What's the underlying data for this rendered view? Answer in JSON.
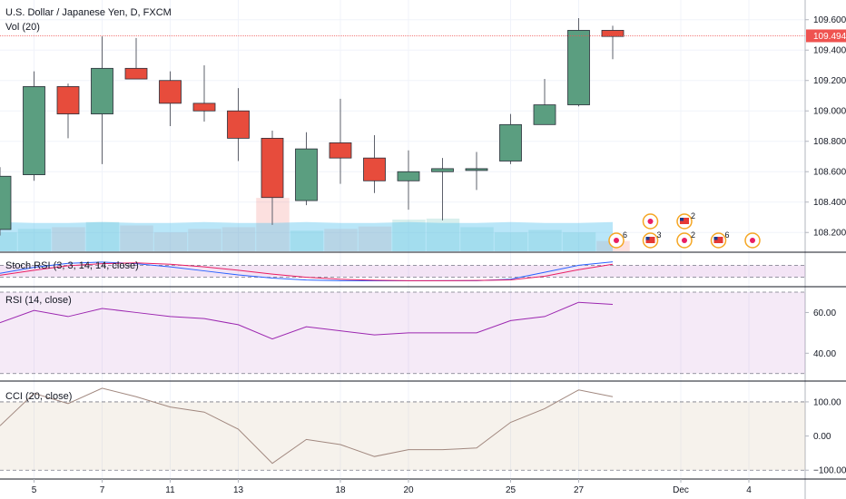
{
  "chart_data": [
    {
      "type": "candlestick",
      "title": "U.S. Dollar / Japanese Yen, D, FXCM",
      "volume_label": "Vol (20)",
      "last_price_label": "109.494",
      "last_price": 109.494,
      "y_ticks": [
        "109.600",
        "109.400",
        "109.200",
        "109.000",
        "108.800",
        "108.600",
        "108.400",
        "108.200"
      ],
      "ylim": [
        108.1,
        109.67
      ],
      "x_tick_labels": [
        {
          "label": "5",
          "index": 1
        },
        {
          "label": "7",
          "index": 3
        },
        {
          "label": "11",
          "index": 5
        },
        {
          "label": "13",
          "index": 7
        },
        {
          "label": "18",
          "index": 10
        },
        {
          "label": "20",
          "index": 12
        },
        {
          "label": "25",
          "index": 15
        },
        {
          "label": "27",
          "index": 17
        },
        {
          "label": "Dec",
          "index": 20
        },
        {
          "label": "4",
          "index": 22
        }
      ],
      "candles": [
        {
          "o": 108.22,
          "h": 108.63,
          "l": 108.18,
          "c": 108.57
        },
        {
          "o": 108.58,
          "h": 109.26,
          "l": 108.54,
          "c": 109.16
        },
        {
          "o": 109.16,
          "h": 109.18,
          "l": 108.82,
          "c": 108.98
        },
        {
          "o": 108.98,
          "h": 109.49,
          "l": 108.65,
          "c": 109.28
        },
        {
          "o": 109.28,
          "h": 109.48,
          "l": 109.21,
          "c": 109.21
        },
        {
          "o": 109.2,
          "h": 109.26,
          "l": 108.9,
          "c": 109.05
        },
        {
          "o": 109.05,
          "h": 109.3,
          "l": 108.93,
          "c": 109.0
        },
        {
          "o": 109.0,
          "h": 109.15,
          "l": 108.67,
          "c": 108.82
        },
        {
          "o": 108.82,
          "h": 108.87,
          "l": 108.25,
          "c": 108.43
        },
        {
          "o": 108.41,
          "h": 108.86,
          "l": 108.38,
          "c": 108.75
        },
        {
          "o": 108.79,
          "h": 109.08,
          "l": 108.52,
          "c": 108.69
        },
        {
          "o": 108.69,
          "h": 108.84,
          "l": 108.46,
          "c": 108.54
        },
        {
          "o": 108.54,
          "h": 108.74,
          "l": 108.35,
          "c": 108.6
        },
        {
          "o": 108.6,
          "h": 108.69,
          "l": 108.28,
          "c": 108.62
        },
        {
          "o": 108.61,
          "h": 108.73,
          "l": 108.48,
          "c": 108.62
        },
        {
          "o": 108.67,
          "h": 108.98,
          "l": 108.65,
          "c": 108.91
        },
        {
          "o": 108.91,
          "h": 109.21,
          "l": 108.91,
          "c": 109.04
        },
        {
          "o": 109.04,
          "h": 109.61,
          "l": 109.03,
          "c": 109.53
        },
        {
          "o": 109.53,
          "h": 109.56,
          "l": 109.34,
          "c": 109.49
        }
      ],
      "volume": [
        0.55,
        0.65,
        0.7,
        0.85,
        0.75,
        0.55,
        0.65,
        0.7,
        1.55,
        0.6,
        0.65,
        0.72,
        0.92,
        0.95,
        0.7,
        0.55,
        0.62,
        0.55,
        0.3
      ],
      "events": [
        {
          "index": 18,
          "row": 1,
          "kind": "dot",
          "count": "6"
        },
        {
          "index": 19,
          "row": 0,
          "kind": "dot",
          "count": ""
        },
        {
          "index": 19,
          "row": 1,
          "kind": "flag",
          "count": "3"
        },
        {
          "index": 20,
          "row": 0,
          "kind": "flag",
          "count": "2"
        },
        {
          "index": 20,
          "row": 1,
          "kind": "dot",
          "count": "2"
        },
        {
          "index": 21,
          "row": 1,
          "kind": "flag",
          "count": "6"
        },
        {
          "index": 22,
          "row": 1,
          "kind": "dot",
          "count": ""
        }
      ]
    },
    {
      "type": "line",
      "title": "Stoch RSI (3, 3, 14, 14, close)",
      "ylim": [
        0,
        100
      ],
      "bands": [
        20,
        80
      ],
      "series": [
        {
          "color": "#2962ff",
          "values": [
            40,
            70,
            90,
            96,
            88,
            72,
            52,
            32,
            16,
            6,
            3,
            2,
            2,
            3,
            3,
            10,
            45,
            80,
            97
          ]
        },
        {
          "color": "#e91e63",
          "values": [
            30,
            55,
            78,
            88,
            92,
            85,
            72,
            55,
            36,
            20,
            10,
            5,
            3,
            3,
            4,
            7,
            25,
            58,
            85
          ]
        }
      ]
    },
    {
      "type": "line",
      "title": "RSI (14, close)",
      "ylim": [
        29,
        70
      ],
      "y_ticks": [
        {
          "label": "60.00",
          "value": 60
        },
        {
          "label": "40.00",
          "value": 40
        }
      ],
      "bands": [
        30,
        70
      ],
      "series": [
        {
          "color": "#9c27b0",
          "values": [
            55,
            61,
            58,
            62,
            60,
            58,
            57,
            54,
            47,
            53,
            51,
            49,
            50,
            50,
            50,
            56,
            58,
            65,
            64
          ]
        }
      ]
    },
    {
      "type": "line",
      "title": "CCI (20, close)",
      "ylim": [
        -110,
        145
      ],
      "y_ticks": [
        {
          "label": "100.00",
          "value": 100
        },
        {
          "label": "0.00",
          "value": 0
        },
        {
          "label": "−100.00",
          "value": -100
        }
      ],
      "bands": [
        -100,
        100
      ],
      "series": [
        {
          "color": "#a1887f",
          "values": [
            30,
            125,
            95,
            140,
            115,
            85,
            70,
            20,
            -80,
            -10,
            -25,
            -60,
            -40,
            -40,
            -35,
            40,
            80,
            135,
            115
          ]
        }
      ]
    }
  ]
}
